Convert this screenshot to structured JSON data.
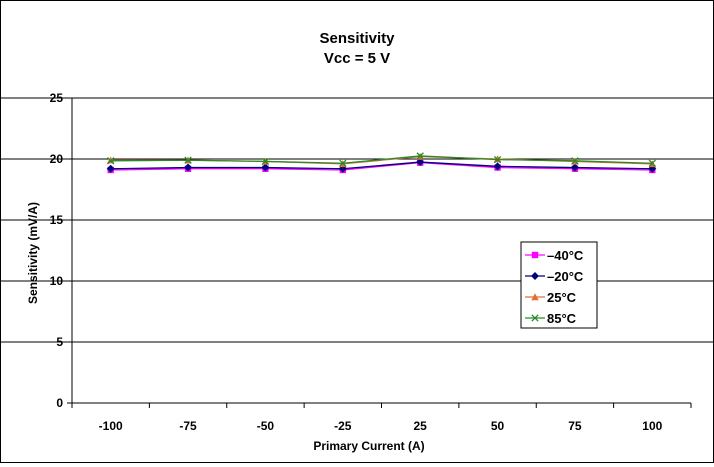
{
  "chart_data": {
    "type": "line",
    "title": "Sensitivity",
    "subtitle": "Vcc = 5 V",
    "xlabel": "Primary Current (A)",
    "ylabel": "Sensitivity (mV/A)",
    "categories": [
      "-100",
      "-75",
      "-50",
      "-25",
      "25",
      "50",
      "75",
      "100"
    ],
    "ylim": [
      0,
      25
    ],
    "yticks": [
      "0",
      "5",
      "10",
      "15",
      "20",
      "25"
    ],
    "grid": true,
    "legend_position": "right",
    "series": [
      {
        "name": "–40°C",
        "color": "#ff00ff",
        "marker": "square",
        "values": [
          19.1,
          19.2,
          19.2,
          19.1,
          19.7,
          19.3,
          19.2,
          19.1
        ]
      },
      {
        "name": "–20°C",
        "color": "#000080",
        "marker": "diamond",
        "values": [
          19.2,
          19.3,
          19.3,
          19.2,
          19.75,
          19.4,
          19.3,
          19.2
        ]
      },
      {
        "name": "25°C",
        "color": "#e07030",
        "marker": "triangle",
        "values": [
          19.9,
          19.9,
          19.8,
          19.6,
          20.2,
          20.0,
          19.8,
          19.6
        ]
      },
      {
        "name": "85°C",
        "color": "#2a8a2a",
        "marker": "x",
        "values": [
          19.85,
          19.9,
          19.8,
          19.65,
          20.25,
          19.95,
          19.85,
          19.65
        ]
      }
    ]
  }
}
